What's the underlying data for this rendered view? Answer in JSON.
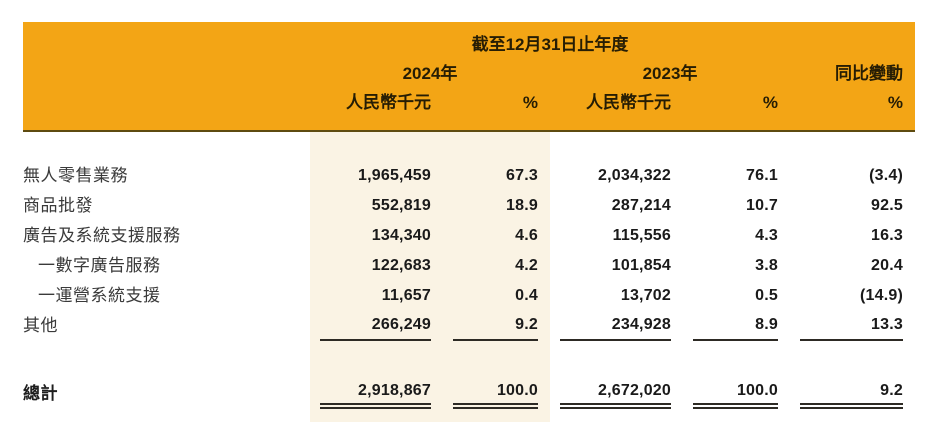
{
  "table": {
    "period_header": "截至12月31日止年度",
    "groups": [
      {
        "label": "2024年"
      },
      {
        "label": "2023年"
      },
      {
        "label": "同比變動"
      }
    ],
    "subheaders": [
      "人民幣千元",
      "%",
      "人民幣千元",
      "%",
      "%"
    ],
    "rows": [
      {
        "label": "無人零售業務",
        "v2024": "1,965,459",
        "p2024": "67.3",
        "v2023": "2,034,322",
        "p2023": "76.1",
        "yoy": "(3.4)"
      },
      {
        "label": "商品批發",
        "v2024": "552,819",
        "p2024": "18.9",
        "v2023": "287,214",
        "p2023": "10.7",
        "yoy": "92.5"
      },
      {
        "label": "廣告及系統支援服務",
        "v2024": "134,340",
        "p2024": "4.6",
        "v2023": "115,556",
        "p2023": "4.3",
        "yoy": "16.3"
      },
      {
        "label": "一數字廣告服務",
        "v2024": "122,683",
        "p2024": "4.2",
        "v2023": "101,854",
        "p2023": "3.8",
        "yoy": "20.4"
      },
      {
        "label": "一運營系統支援",
        "v2024": "11,657",
        "p2024": "0.4",
        "v2023": "13,702",
        "p2023": "0.5",
        "yoy": "(14.9)"
      },
      {
        "label": "其他",
        "v2024": "266,249",
        "p2024": "9.2",
        "v2023": "234,928",
        "p2023": "8.9",
        "yoy": "13.3"
      }
    ],
    "total": {
      "label": "總計",
      "v2024": "2,918,867",
      "p2024": "100.0",
      "v2023": "2,672,020",
      "p2023": "100.0",
      "yoy": "9.2"
    },
    "colors": {
      "band_orange": "#F3A515",
      "band_border": "#5E4B10",
      "column_highlight": "#FAF3E4",
      "rule_dark": "#2D2A24",
      "page_background": "#FFFFFF"
    }
  }
}
